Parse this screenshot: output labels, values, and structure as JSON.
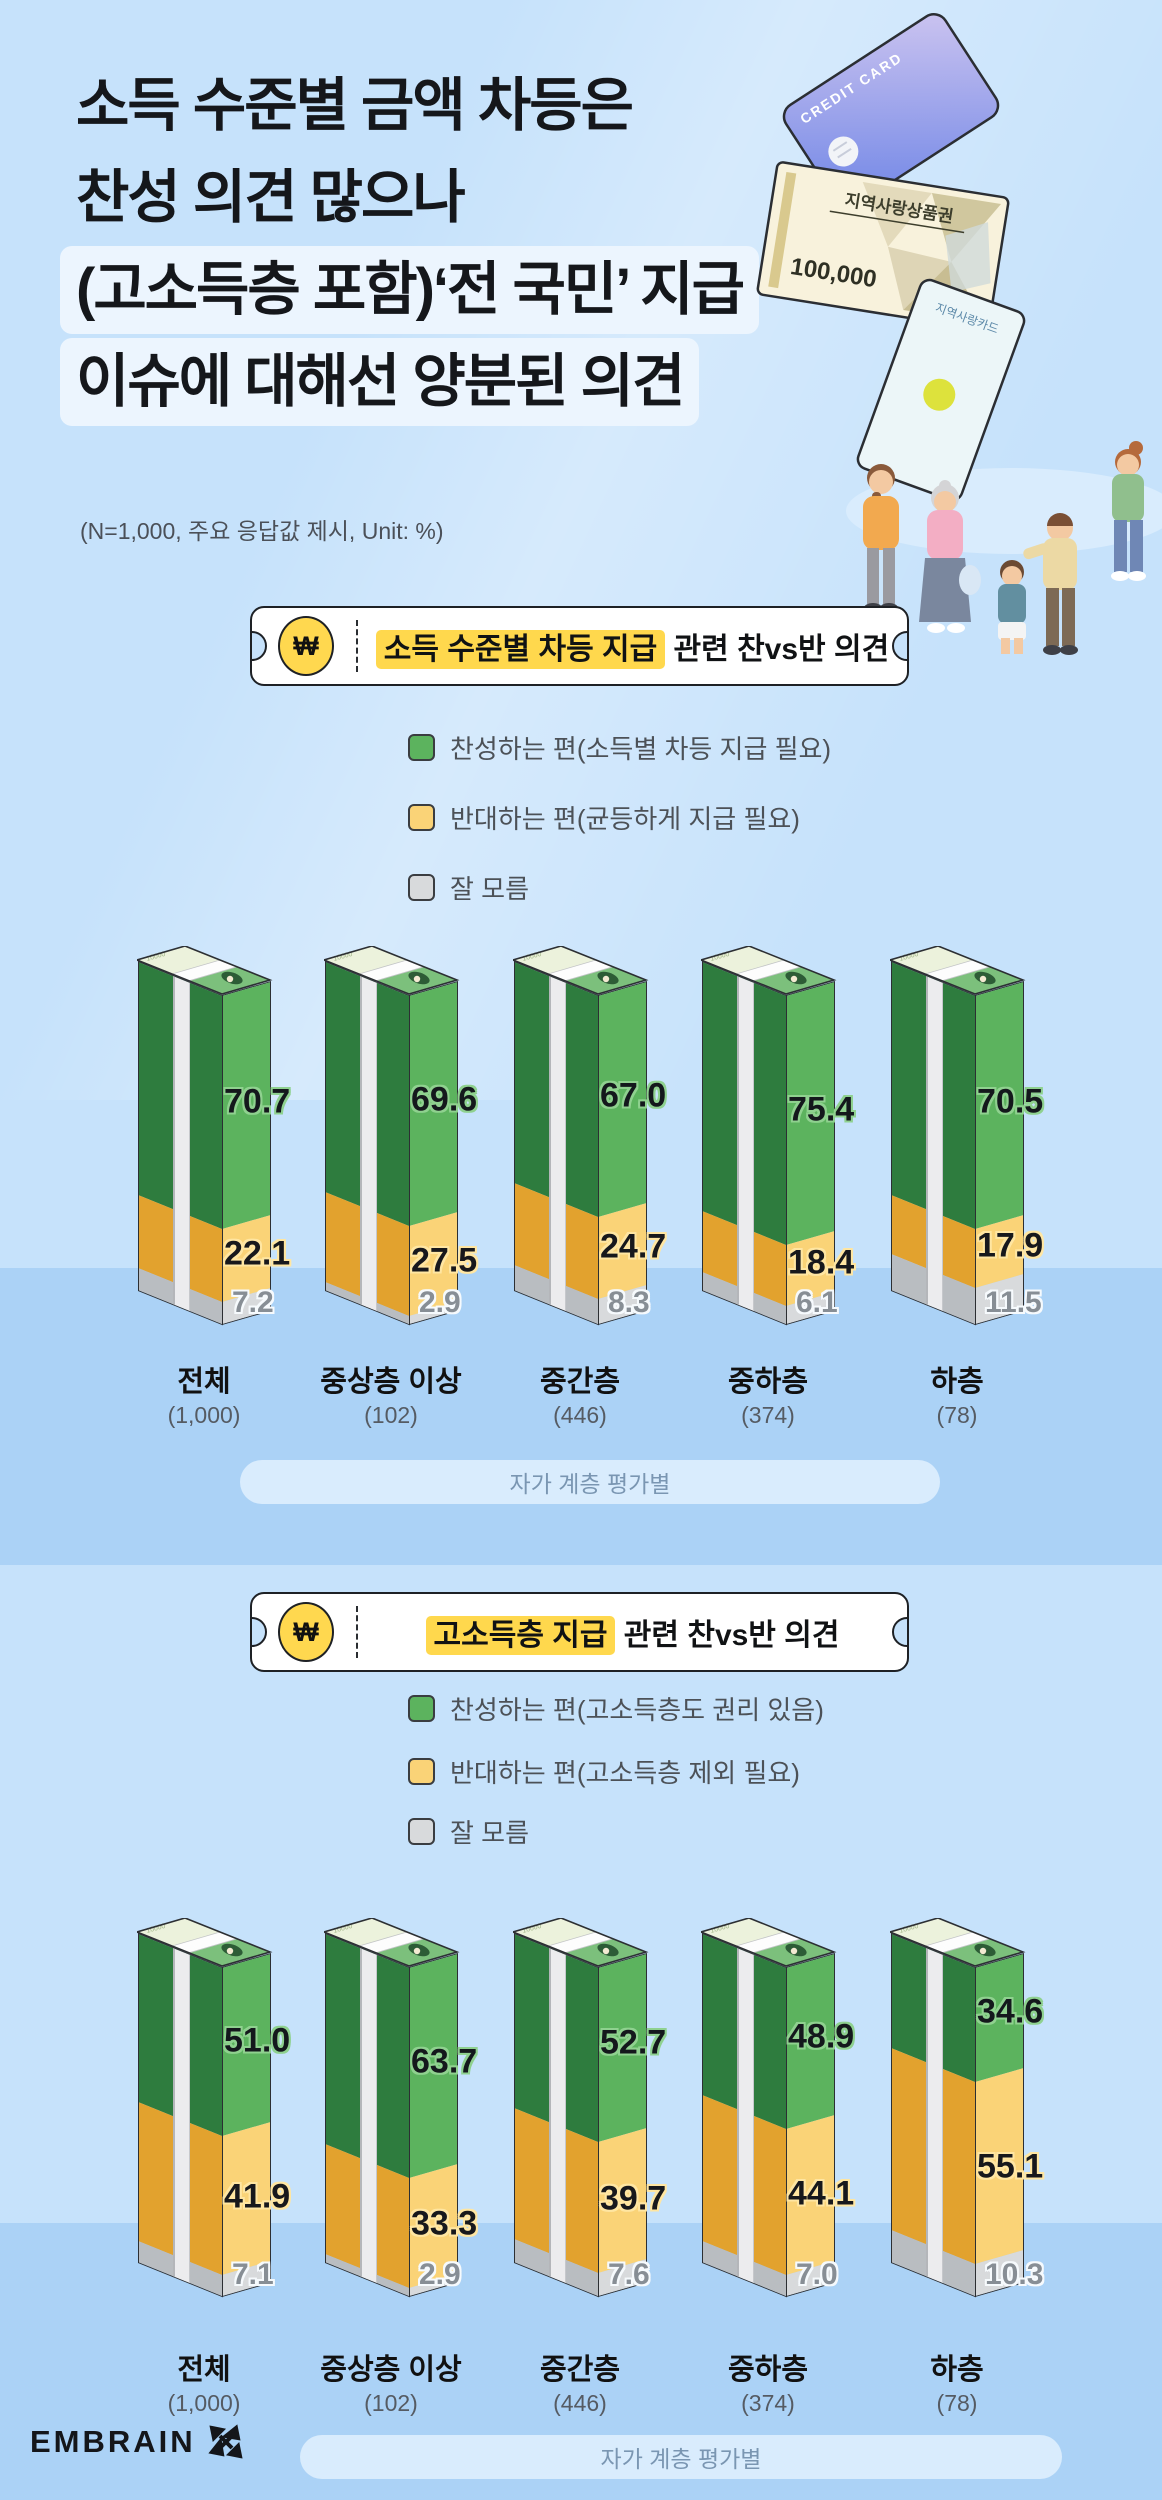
{
  "title": {
    "line1": "소득 수준별 금액 차등은",
    "line2": "찬성 의견 많으나",
    "line3": "(고소득층 포함)‘전 국민’ 지급",
    "line4": "이슈에 대해선 양분된 의견",
    "note": "(N=1,000, 주요 응답값 제시, Unit: %)"
  },
  "currency_symbol": "₩",
  "illustration": {
    "credit_card_label": "CREDIT CARD",
    "voucher_title": "지역사랑상품권",
    "voucher_amount": "100,000",
    "local_card_title": "지역사랑카드",
    "figures": [
      "woman-orange",
      "elderly-woman-pink",
      "boy-teal",
      "man-yellow-cap",
      "woman-green"
    ]
  },
  "style": {
    "bg": "#c6e2fb",
    "floor": "#abd2f6",
    "header_highlight": "#ffd84d",
    "coin": "#ffd84f",
    "series": [
      {
        "key": "agree",
        "left": "#2e7c3e",
        "right": "#5cb35e",
        "halo": "#8fd18f",
        "text": "#14181c"
      },
      {
        "key": "oppose",
        "left": "#e2a22e",
        "right": "#fad377",
        "halo": "#ffe6a2",
        "text": "#17181c"
      },
      {
        "key": "dontknow",
        "left": "#b9bdc1",
        "right": "#d8dadc",
        "halo": "#f6fafd",
        "text": "#878e95"
      }
    ]
  },
  "sections": [
    {
      "header": {
        "highlight": "소득 수준별 차등 지급",
        "rest": " 관련 찬vs반 의견"
      },
      "footer_pill": "자가 계층 평가별"
    },
    {
      "header": {
        "highlight": "고소득층 지급",
        "rest": " 관련 찬vs반 의견"
      },
      "footer_pill": "자가 계층 평가별"
    }
  ],
  "chart_data": [
    {
      "type": "bar",
      "stacked": true,
      "unit": "%",
      "title": "소득 수준별 차등 지급 관련 찬vs반 의견",
      "categories": [
        "전체",
        "중상층 이상",
        "중간층",
        "중하층",
        "하층"
      ],
      "category_n": [
        "(1,000)",
        "(102)",
        "(446)",
        "(374)",
        "(78)"
      ],
      "series": [
        {
          "name": "찬성하는 편(소득별 차등 지급 필요)",
          "values": [
            70.7,
            69.6,
            67.0,
            75.4,
            70.5
          ]
        },
        {
          "name": "반대하는 편(균등하게 지급 필요)",
          "values": [
            22.1,
            27.5,
            24.7,
            18.4,
            17.9
          ]
        },
        {
          "name": "잘 모름",
          "values": [
            7.2,
            2.9,
            8.3,
            6.1,
            11.5
          ]
        }
      ],
      "legend_position": "top",
      "ylim": [
        0,
        100
      ]
    },
    {
      "type": "bar",
      "stacked": true,
      "unit": "%",
      "title": "고소득층 지급 관련 찬vs반 의견",
      "categories": [
        "전체",
        "중상층 이상",
        "중간층",
        "중하층",
        "하층"
      ],
      "category_n": [
        "(1,000)",
        "(102)",
        "(446)",
        "(374)",
        "(78)"
      ],
      "series": [
        {
          "name": "찬성하는 편(고소득층도 권리 있음)",
          "values": [
            51.0,
            63.7,
            52.7,
            48.9,
            34.6
          ]
        },
        {
          "name": "반대하는 편(고소득층 제외 필요)",
          "values": [
            41.9,
            33.3,
            39.7,
            44.1,
            55.1
          ]
        },
        {
          "name": "잘 모름",
          "values": [
            7.1,
            2.9,
            7.6,
            7.0,
            10.3
          ]
        }
      ],
      "legend_position": "top",
      "ylim": [
        0,
        100
      ]
    }
  ],
  "banknote": {
    "denomination": "10000"
  },
  "logo": {
    "text": "EMBRAIN"
  }
}
